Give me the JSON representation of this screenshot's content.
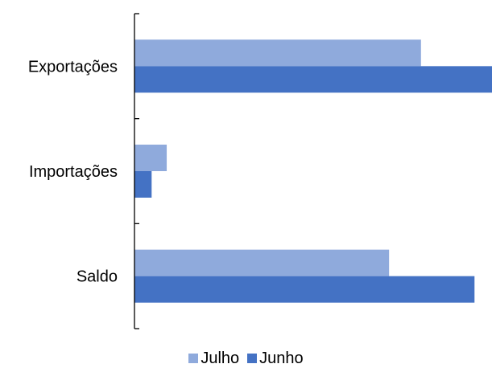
{
  "chart_data": {
    "type": "bar",
    "orientation": "horizontal",
    "title": "",
    "xlabel": "",
    "ylabel": "",
    "categories": [
      "Exportações",
      "Importações",
      "Saldo"
    ],
    "series": [
      {
        "name": "Julho",
        "values": [
          83.5,
          9.4,
          74.2
        ],
        "color": "#8faadc"
      },
      {
        "name": "Junho",
        "values": [
          104.2,
          5.0,
          99.1
        ],
        "color": "#4472c4"
      }
    ],
    "xlim": [
      0,
      104.2
    ],
    "grid": false,
    "legend_position": "bottom",
    "x_axis_visible": false
  }
}
